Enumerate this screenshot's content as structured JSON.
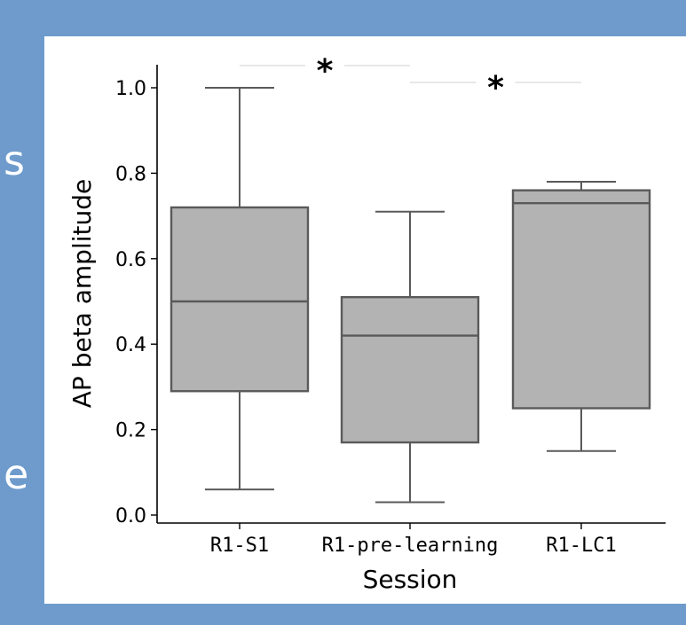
{
  "edge_fragments": [
    "s",
    "e"
  ],
  "chart_data": {
    "type": "box",
    "xlabel": "Session",
    "ylabel": "AP beta amplitude",
    "ylim": [
      0.0,
      1.05
    ],
    "yticks": [
      "0.0",
      "0.2",
      "0.4",
      "0.6",
      "0.8",
      "1.0"
    ],
    "categories": [
      "R1-S1",
      "R1-pre-learning",
      "R1-LC1"
    ],
    "boxes": [
      {
        "whisker_low": 0.06,
        "q1": 0.29,
        "median": 0.5,
        "q3": 0.72,
        "whisker_high": 1.0
      },
      {
        "whisker_low": 0.03,
        "q1": 0.17,
        "median": 0.42,
        "q3": 0.51,
        "whisker_high": 0.71
      },
      {
        "whisker_low": 0.15,
        "q1": 0.25,
        "median": 0.73,
        "q3": 0.76,
        "whisker_high": 0.78
      }
    ],
    "significance": [
      {
        "from": "R1-S1",
        "to": "R1-pre-learning",
        "label": "*"
      },
      {
        "from": "R1-pre-learning",
        "to": "R1-LC1",
        "label": "*"
      }
    ],
    "colors": {
      "box_fill": "#b3b3b3",
      "box_edge": "#5a5a5a",
      "axis": "#000000",
      "bracket": "#d9d9d9"
    }
  }
}
